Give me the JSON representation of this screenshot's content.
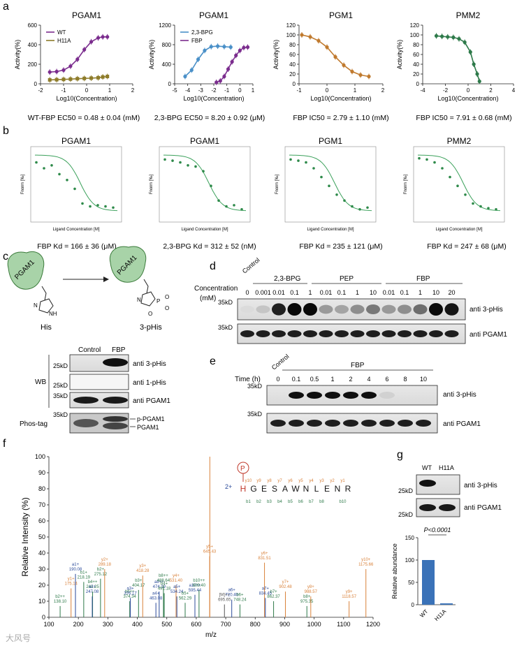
{
  "panel_labels": {
    "a": "a",
    "b": "b",
    "c": "c",
    "d": "d",
    "e": "e",
    "f": "f",
    "g": "g"
  },
  "chart_data": [
    {
      "id": "a1",
      "type": "scatter",
      "title": "PGAM1",
      "ylabel": "Activity(%)",
      "xlabel": "Log10(Concentration)",
      "xlim": [
        -2,
        2
      ],
      "ylim": [
        0,
        600
      ],
      "xticks": [
        -2,
        -1,
        0,
        1,
        2
      ],
      "yticks": [
        0,
        200,
        400,
        600
      ],
      "legend": [
        "WT",
        "H11A"
      ],
      "series": [
        {
          "name": "WT",
          "color": "#7b2d8e",
          "x": [
            -1.6,
            -1.3,
            -1.0,
            -0.7,
            -0.4,
            -0.1,
            0.2,
            0.5,
            0.7,
            0.9
          ],
          "y": [
            120,
            125,
            140,
            180,
            250,
            350,
            430,
            470,
            480,
            480
          ]
        },
        {
          "name": "H11A",
          "color": "#8e7c2a",
          "x": [
            -1.6,
            -1.3,
            -1.0,
            -0.7,
            -0.4,
            -0.1,
            0.2,
            0.5,
            0.7,
            0.9
          ],
          "y": [
            40,
            42,
            45,
            48,
            52,
            55,
            58,
            62,
            70,
            75
          ]
        }
      ],
      "caption": "WT-FBP EC50 = 0.48 ± 0.04 (mM)"
    },
    {
      "id": "a2",
      "type": "scatter",
      "title": "PGAM1",
      "ylabel": "Activity(%)",
      "xlabel": "Log10(Concentration)",
      "xlim": [
        -5,
        1
      ],
      "ylim": [
        0,
        1200
      ],
      "xticks": [
        -5,
        -4,
        -3,
        -2,
        -1,
        0,
        1
      ],
      "yticks": [
        0,
        400,
        800,
        1200
      ],
      "legend": [
        "2,3-BPG",
        "FBP"
      ],
      "series": [
        {
          "name": "2,3-BPG",
          "color": "#4a90c8",
          "x": [
            -4.2,
            -3.7,
            -3.2,
            -2.7,
            -2.2,
            -1.7,
            -1.2,
            -0.7
          ],
          "y": [
            150,
            280,
            500,
            680,
            760,
            770,
            760,
            750
          ]
        },
        {
          "name": "FBP",
          "color": "#7b2d8e",
          "x": [
            -1.8,
            -1.5,
            -1.2,
            -0.9,
            -0.6,
            -0.3,
            0,
            0.3,
            0.6
          ],
          "y": [
            30,
            60,
            150,
            300,
            450,
            580,
            680,
            740,
            750
          ]
        }
      ],
      "caption": "2,3-BPG EC50 = 8.20 ± 0.92 (μM)"
    },
    {
      "id": "a3",
      "type": "scatter",
      "title": "PGM1",
      "ylabel": "Activity(%)",
      "xlabel": "Log10(Concentration)",
      "xlim": [
        -1,
        2
      ],
      "ylim": [
        0,
        120
      ],
      "xticks": [
        -1,
        0,
        1,
        2
      ],
      "yticks": [
        0,
        20,
        40,
        60,
        80,
        100,
        120
      ],
      "series": [
        {
          "name": "FBP",
          "color": "#c07a2e",
          "x": [
            -0.9,
            -0.6,
            -0.3,
            0,
            0.3,
            0.6,
            0.9,
            1.2,
            1.5
          ],
          "y": [
            100,
            96,
            88,
            75,
            55,
            38,
            25,
            18,
            15
          ]
        }
      ],
      "caption": "FBP IC50 = 2.79 ± 1.10 (mM)"
    },
    {
      "id": "a4",
      "type": "scatter",
      "title": "PMM2",
      "ylabel": "Activity(%)",
      "xlabel": "Log10(Concentration)",
      "xlim": [
        -4,
        4
      ],
      "ylim": [
        0,
        120
      ],
      "xticks": [
        -4,
        -2,
        0,
        2,
        4
      ],
      "yticks": [
        0,
        20,
        40,
        60,
        80,
        100,
        120
      ],
      "series": [
        {
          "name": "FBP",
          "color": "#2e7a4a",
          "x": [
            -2.8,
            -2.3,
            -1.8,
            -1.3,
            -0.8,
            -0.3,
            0.2,
            0.5,
            0.8,
            1.0
          ],
          "y": [
            98,
            97,
            96,
            95,
            92,
            85,
            65,
            40,
            20,
            5
          ]
        }
      ],
      "caption": "FBP IC50 = 7.91 ± 0.68 (mM)"
    },
    {
      "id": "b1",
      "type": "scatter",
      "title": "PGAM1",
      "ylabel": "Fnorm [‰]",
      "xlabel": "Ligand Concentration [M]",
      "caption": "FBP  Kd = 166 ± 36 (μM)"
    },
    {
      "id": "b2",
      "type": "scatter",
      "title": "PGAM1",
      "ylabel": "Fnorm [‰]",
      "xlabel": "Ligand Concentration [M]",
      "caption": "2,3-BPG  Kd = 312 ± 52 (nM)"
    },
    {
      "id": "b3",
      "type": "scatter",
      "title": "PGM1",
      "ylabel": "Fnorm [‰]",
      "xlabel": "Ligand Concentration [M]",
      "caption": "FBP  Kd = 235 ± 121 (μM)"
    },
    {
      "id": "b4",
      "type": "scatter",
      "title": "PMM2",
      "ylabel": "Fnorm [‰]",
      "xlabel": "Ligand Concentration [M]",
      "caption": "FBP  Kd = 247 ± 68  (μM)"
    },
    {
      "id": "f",
      "type": "bar",
      "title": "",
      "ylabel": "Relative  Intensity (%)",
      "xlabel": "m/z",
      "xlim": [
        100,
        1200
      ],
      "ylim": [
        0,
        100
      ],
      "xticks": [
        100,
        200,
        300,
        400,
        500,
        600,
        700,
        800,
        900,
        1000,
        1100,
        1200
      ],
      "yticks": [
        0,
        10,
        20,
        30,
        40,
        50,
        60,
        70,
        80,
        90,
        100
      ],
      "peaks": [
        {
          "mz": 138.1,
          "intensity": 7,
          "label": "b2++\n138.10",
          "c": "g"
        },
        {
          "mz": 175.14,
          "intensity": 18,
          "label": "y1+\n175.14",
          "c": "o"
        },
        {
          "mz": 190.08,
          "intensity": 27,
          "label": "a1+\n190.08",
          "c": "b"
        },
        {
          "mz": 218.19,
          "intensity": 22,
          "label": "b1+\n218.19",
          "c": "g"
        },
        {
          "mz": 248.25,
          "intensity": 16,
          "label": "b4++\n248.25",
          "c": "g"
        },
        {
          "mz": 247.08,
          "intensity": 13,
          "label": "a2+\n247.08",
          "c": "b"
        },
        {
          "mz": 275.12,
          "intensity": 24,
          "label": "b2+\n275.12",
          "c": "g"
        },
        {
          "mz": 289.18,
          "intensity": 30,
          "label": "y2+\n289.18",
          "c": "o"
        },
        {
          "mz": 374.34,
          "intensity": 10,
          "label": "b6++\n374.34",
          "c": "g"
        },
        {
          "mz": 376.17,
          "intensity": 12,
          "label": "a3+\n376.17",
          "c": "b"
        },
        {
          "mz": 404.17,
          "intensity": 17,
          "label": "b3+\n404.17",
          "c": "g"
        },
        {
          "mz": 418.28,
          "intensity": 26,
          "label": "y3+\n418.28",
          "c": "o"
        },
        {
          "mz": 463.08,
          "intensity": 9,
          "label": "a4+\n463.08",
          "c": "b"
        },
        {
          "mz": 474.19,
          "intensity": 16,
          "label": "a8++\n474.19",
          "c": "b"
        },
        {
          "mz": 488.64,
          "intensity": 20,
          "label": "b8++\n488.64",
          "c": "g"
        },
        {
          "mz": 491.18,
          "intensity": 15,
          "label": "b4+\n491.18",
          "c": "g"
        },
        {
          "mz": 531.4,
          "intensity": 20,
          "label": "y4+\n531.40",
          "c": "o"
        },
        {
          "mz": 534.24,
          "intensity": 13,
          "label": "a5+\n534.24",
          "c": "b"
        },
        {
          "mz": 562.29,
          "intensity": 9,
          "label": "b5+\n562.29",
          "c": "g"
        },
        {
          "mz": 595.44,
          "intensity": 14,
          "label": "a10++\n595.44",
          "c": "b"
        },
        {
          "mz": 609.4,
          "intensity": 17,
          "label": "b10++\n609.40",
          "c": "g"
        },
        {
          "mz": 645.43,
          "intensity": 38,
          "label": "y5+\n645.43",
          "c": "o"
        },
        {
          "mz": 646.0,
          "intensity": 100,
          "label": "",
          "c": "o"
        },
        {
          "mz": 695.65,
          "intensity": 8,
          "label": "[M]++\n695.65",
          "c": "k"
        },
        {
          "mz": 720.4,
          "intensity": 11,
          "label": "a6+\n720.40",
          "c": "b"
        },
        {
          "mz": 748.24,
          "intensity": 8,
          "label": "b6+\n748.24",
          "c": "g"
        },
        {
          "mz": 831.51,
          "intensity": 34,
          "label": "y6+\n831.51",
          "c": "o"
        },
        {
          "mz": 834.45,
          "intensity": 12,
          "label": "a7+\n834.45",
          "c": "b"
        },
        {
          "mz": 862.37,
          "intensity": 10,
          "label": "b7+\n862.37",
          "c": "g"
        },
        {
          "mz": 902.48,
          "intensity": 16,
          "label": "y7+\n902.48",
          "c": "o"
        },
        {
          "mz": 975.35,
          "intensity": 7,
          "label": "b8+\n975.35",
          "c": "g"
        },
        {
          "mz": 988.57,
          "intensity": 13,
          "label": "y8+\n988.57",
          "c": "o"
        },
        {
          "mz": 1118.57,
          "intensity": 10,
          "label": "y9+\n1118.57",
          "c": "o"
        },
        {
          "mz": 1175.66,
          "intensity": 30,
          "label": "y10+\n1175.66",
          "c": "o"
        }
      ]
    },
    {
      "id": "g",
      "type": "bar",
      "ylabel": "Relative abundance",
      "categories": [
        "WT",
        "H11A"
      ],
      "values": [
        100,
        3
      ],
      "ylim": [
        0,
        150
      ],
      "yticks": [
        0,
        50,
        100,
        150
      ],
      "annotation": "P<0.0001",
      "color": "#3a72b8"
    }
  ],
  "panel_c": {
    "pgam1_label": "PGAM1",
    "his_label": "His",
    "phis_label": "3-pHis",
    "n_label": "N",
    "nh_label": "NH",
    "p_label": "P",
    "o_label": "O",
    "wb_label": "WB",
    "phostag_label": "Phos-tag",
    "col_control": "Control",
    "col_fbp": "FBP",
    "rows": [
      "anti 3-pHis",
      "anti 1-pHis",
      "anti PGAM1"
    ],
    "mw": [
      "25kD",
      "25kD",
      "35kD",
      "35kD"
    ],
    "phos_bands": [
      "p-PGAM1",
      "PGAM1"
    ]
  },
  "panel_d": {
    "control": "Control",
    "conc_label": "Concentration",
    "unit_label": "(mM)",
    "groups": [
      "2,3-BPG",
      "PEP",
      "FBP"
    ],
    "conc": [
      "0",
      "0.001",
      "0.01",
      "0.1",
      "1",
      "0.01",
      "0.1",
      "1",
      "10",
      "0.01",
      "0.1",
      "1",
      "10",
      "20"
    ],
    "rows": [
      "anti 3-pHis",
      "anti PGAM1"
    ],
    "mw": [
      "35kD",
      "35kD"
    ]
  },
  "panel_e": {
    "control": "Control",
    "time_label": "Time (h)",
    "group": "FBP",
    "times": [
      "0",
      "0.1",
      "0.5",
      "1",
      "2",
      "4",
      "6",
      "8",
      "10"
    ],
    "rows": [
      "anti 3-pHis",
      "anti PGAM1"
    ],
    "mw": [
      "35kD",
      "35kD"
    ]
  },
  "panel_f_seq": {
    "charge": "2+",
    "p": "P",
    "residues": [
      "H",
      "G",
      "E",
      "S",
      "A",
      "W",
      "N",
      "L",
      "E",
      "N",
      "R"
    ],
    "y_ions": [
      "y10",
      "y9",
      "y8",
      "y7",
      "y6",
      "y5",
      "y4",
      "y3",
      "y2",
      "y1"
    ],
    "b_ions": [
      "b1",
      "b2",
      "b3",
      "b4",
      "b5",
      "b6",
      "b7",
      "b8",
      "b10"
    ]
  },
  "panel_g_blot": {
    "cols": [
      "WT",
      "H11A"
    ],
    "rows": [
      "anti 3-pHis",
      "anti PGAM1"
    ],
    "mw": [
      "25kD",
      "25kD"
    ]
  },
  "watermark": "大风号"
}
